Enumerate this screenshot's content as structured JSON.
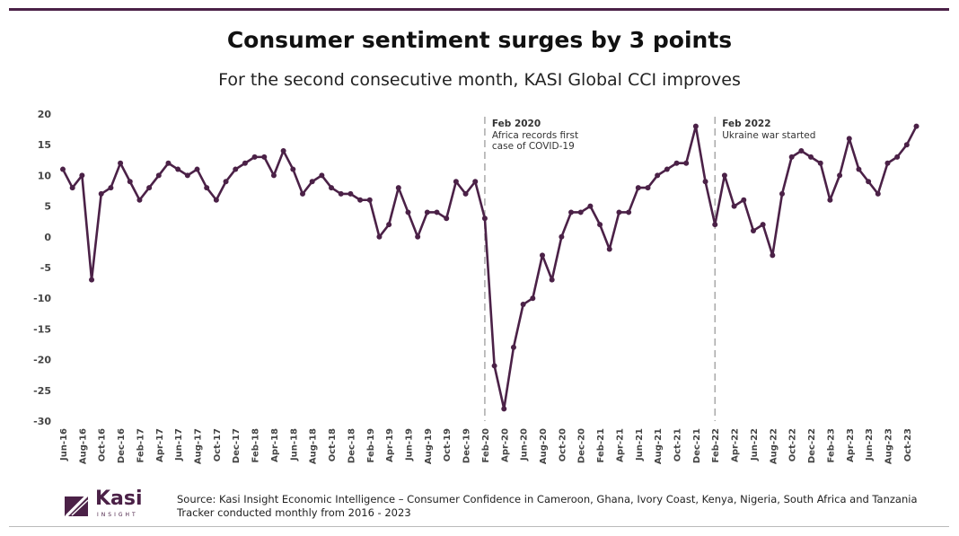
{
  "title": "Consumer sentiment surges by 3 points",
  "subtitle": "For the second consecutive month, KASI Global CCI improves",
  "source_line1": "Source: Kasi Insight Economic Intelligence – Consumer Confidence in Cameroon, Ghana, Ivory Coast, Kenya, Nigeria, South Africa and Tanzania",
  "source_line2": "Tracker conducted monthly from 2016 - 2023",
  "logo": {
    "word": "Kasi",
    "sub": "INSIGHT",
    "icon": "kasi-logo-icon"
  },
  "colors": {
    "line": "#4b2147",
    "annotation": "#aaaaaa",
    "accent": "#4b2147"
  },
  "chart_data": {
    "type": "line",
    "title": "Consumer sentiment surges by 3 points",
    "xlabel": "",
    "ylabel": "",
    "ylim": [
      -30,
      20
    ],
    "yticks": [
      "20",
      "15",
      "10",
      "5",
      "0",
      "-5",
      "-10",
      "-15",
      "-20",
      "-25",
      "-30"
    ],
    "grid": false,
    "start_month": "Jun-16",
    "x_tick_labels": [
      "Jun-16",
      "Aug-16",
      "Oct-16",
      "Dec-16",
      "Feb-17",
      "Apr-17",
      "Jun-17",
      "Aug-17",
      "Oct-17",
      "Dec-17",
      "Feb-18",
      "Apr-18",
      "Jun-18",
      "Aug-18",
      "Oct-18",
      "Dec-18",
      "Feb-19",
      "Apr-19",
      "Jun-19",
      "Aug-19",
      "Oct-19",
      "Dec-19",
      "Feb-20",
      "Apr-20",
      "Jun-20",
      "Aug-20",
      "Oct-20",
      "Dec-20",
      "Feb-21",
      "Apr-21",
      "Jun-21",
      "Aug-21",
      "Oct-21",
      "Dec-21",
      "Feb-22",
      "Apr-22",
      "Jun-22",
      "Aug-22",
      "Oct-22",
      "Dec-22",
      "Feb-23",
      "Apr-23",
      "Jun-23",
      "Aug-23",
      "Oct-23"
    ],
    "series": [
      {
        "name": "KASI Global CCI",
        "values": [
          11,
          8,
          10,
          -7,
          7,
          8,
          12,
          9,
          6,
          8,
          10,
          12,
          11,
          10,
          11,
          8,
          6,
          9,
          11,
          12,
          13,
          13,
          10,
          14,
          11,
          7,
          9,
          10,
          8,
          7,
          7,
          6,
          6,
          0,
          2,
          8,
          4,
          0,
          4,
          4,
          3,
          9,
          7,
          9,
          3,
          -21,
          -28,
          -18,
          -11,
          -10,
          -3,
          -7,
          0,
          4,
          4,
          5,
          2,
          -2,
          4,
          4,
          8,
          8,
          10,
          11,
          12,
          12,
          18,
          9,
          2,
          10,
          5,
          6,
          1,
          2,
          -3,
          7,
          13,
          14,
          13,
          12,
          6,
          10,
          16,
          11,
          9,
          7,
          12,
          13,
          15,
          18
        ]
      }
    ],
    "annotations": [
      {
        "x_label": "Feb-20",
        "title": "Feb 2020",
        "lines": [
          "Africa records first",
          "case of COVID-19"
        ]
      },
      {
        "x_label": "Feb-22",
        "title": "Feb 2022",
        "lines": [
          "Ukraine war started"
        ]
      }
    ]
  }
}
